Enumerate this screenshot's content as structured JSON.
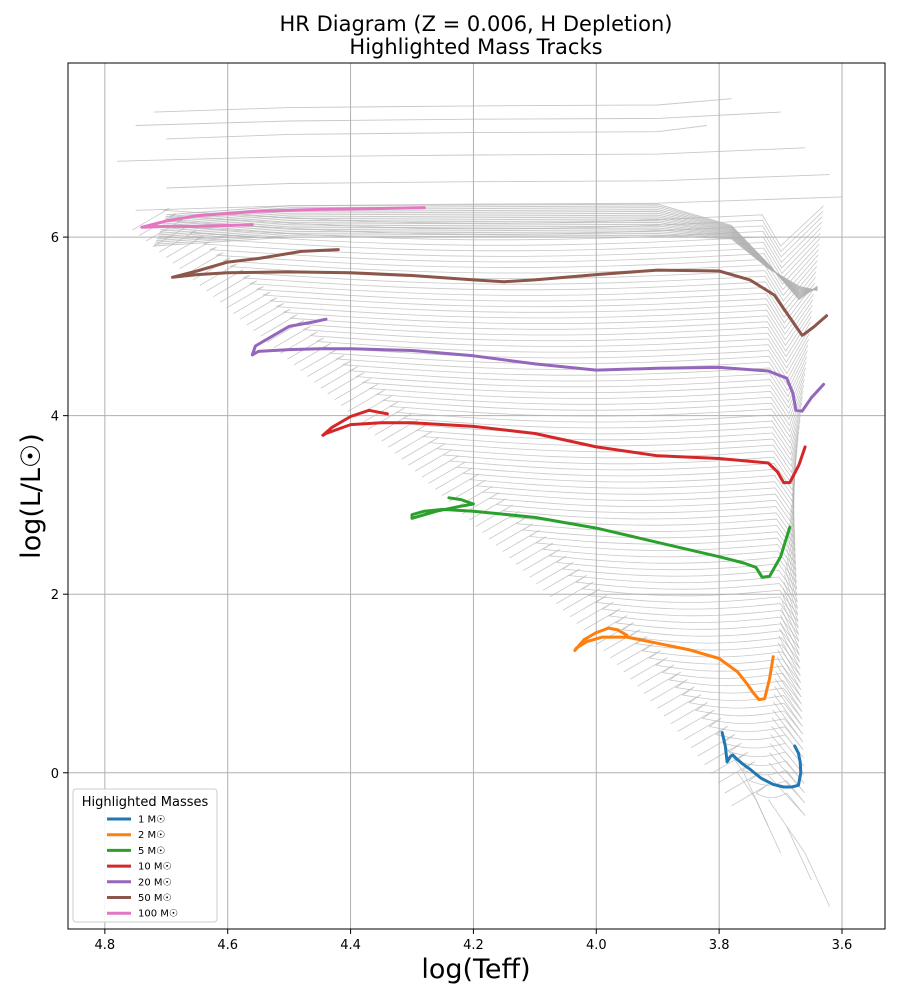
{
  "chart_data": {
    "type": "line",
    "title_line1": "HR Diagram (Z = 0.006, H Depletion)",
    "title_line2": "Highlighted Mass Tracks",
    "xlabel": "log(Teff)",
    "ylabel": "log(L/L☉)",
    "xlim": [
      4.86,
      3.53
    ],
    "ylim": [
      -1.75,
      7.95
    ],
    "x_inverted": true,
    "grid": true,
    "xticks": [
      4.8,
      4.6,
      4.4,
      4.2,
      4.0,
      3.8,
      3.6
    ],
    "yticks": [
      0,
      2,
      4,
      6
    ],
    "legend": {
      "title": "Highlighted Masses",
      "placement": "lower-left"
    },
    "background_tracks_color": "#b0b0b0",
    "series": [
      {
        "name": "1 M☉",
        "color": "#1f77b4",
        "x": [
          3.795,
          3.79,
          3.787,
          3.782,
          3.778,
          3.772,
          3.762,
          3.748,
          3.732,
          3.712,
          3.695,
          3.682,
          3.671,
          3.667,
          3.668,
          3.671,
          3.677
        ],
        "y": [
          0.45,
          0.3,
          0.12,
          0.18,
          0.2,
          0.16,
          0.1,
          0.03,
          -0.06,
          -0.13,
          -0.16,
          -0.16,
          -0.14,
          0.0,
          0.12,
          0.22,
          0.3
        ]
      },
      {
        "name": "2 M☉",
        "color": "#ff7f0e",
        "x": [
          3.95,
          3.965,
          3.98,
          4.0,
          4.02,
          4.035,
          4.032,
          4.015,
          3.99,
          3.95,
          3.9,
          3.85,
          3.8,
          3.77,
          3.755,
          3.745,
          3.735,
          3.726,
          3.718,
          3.712
        ],
        "y": [
          1.54,
          1.6,
          1.62,
          1.57,
          1.49,
          1.37,
          1.4,
          1.47,
          1.52,
          1.52,
          1.45,
          1.38,
          1.28,
          1.13,
          1.0,
          0.9,
          0.82,
          0.83,
          1.05,
          1.3
        ]
      },
      {
        "name": "5 M☉",
        "color": "#2ca02c",
        "x": [
          4.24,
          4.22,
          4.2,
          4.225,
          4.26,
          4.3,
          4.3,
          4.28,
          4.25,
          4.2,
          4.1,
          4.0,
          3.9,
          3.8,
          3.76,
          3.74,
          3.73,
          3.718,
          3.7,
          3.685
        ],
        "y": [
          3.08,
          3.06,
          3.01,
          2.98,
          2.93,
          2.85,
          2.89,
          2.93,
          2.95,
          2.93,
          2.86,
          2.74,
          2.58,
          2.42,
          2.35,
          2.3,
          2.19,
          2.2,
          2.42,
          2.75
        ]
      },
      {
        "name": "10 M☉",
        "color": "#d62728",
        "x": [
          4.34,
          4.37,
          4.4,
          4.43,
          4.445,
          4.44,
          4.4,
          4.35,
          4.3,
          4.2,
          4.1,
          4.0,
          3.9,
          3.8,
          3.72,
          3.705,
          3.695,
          3.685,
          3.67,
          3.66
        ],
        "y": [
          4.02,
          4.06,
          3.99,
          3.87,
          3.78,
          3.8,
          3.9,
          3.92,
          3.92,
          3.88,
          3.8,
          3.65,
          3.55,
          3.52,
          3.47,
          3.37,
          3.25,
          3.25,
          3.45,
          3.65
        ]
      },
      {
        "name": "20 M☉",
        "color": "#9467bd",
        "x": [
          4.44,
          4.46,
          4.5,
          4.53,
          4.555,
          4.56,
          4.55,
          4.5,
          4.45,
          4.4,
          4.3,
          4.2,
          4.1,
          4.0,
          3.9,
          3.8,
          3.72,
          3.69,
          3.68,
          3.675,
          3.665,
          3.65,
          3.63
        ],
        "y": [
          5.08,
          5.05,
          5.0,
          4.88,
          4.78,
          4.68,
          4.72,
          4.74,
          4.75,
          4.75,
          4.73,
          4.67,
          4.58,
          4.51,
          4.53,
          4.54,
          4.5,
          4.42,
          4.25,
          4.06,
          4.05,
          4.2,
          4.35
        ]
      },
      {
        "name": "50 M☉",
        "color": "#8c564b",
        "x": [
          4.42,
          4.48,
          4.55,
          4.6,
          4.65,
          4.69,
          4.65,
          4.6,
          4.5,
          4.4,
          4.3,
          4.2,
          4.15,
          4.1,
          4.0,
          3.9,
          3.8,
          3.75,
          3.71,
          3.69,
          3.675,
          3.665,
          3.66,
          3.645,
          3.625
        ],
        "y": [
          5.86,
          5.84,
          5.76,
          5.72,
          5.62,
          5.55,
          5.58,
          5.6,
          5.61,
          5.6,
          5.57,
          5.52,
          5.5,
          5.52,
          5.58,
          5.63,
          5.62,
          5.52,
          5.35,
          5.15,
          5.0,
          4.9,
          4.92,
          5.0,
          5.12
        ]
      },
      {
        "name": "100 M☉",
        "color": "#e377c2",
        "x": [
          4.28,
          4.35,
          4.45,
          4.55,
          4.65,
          4.7,
          4.74,
          4.7,
          4.65,
          4.6,
          4.56
        ],
        "y": [
          6.33,
          6.32,
          6.31,
          6.29,
          6.24,
          6.18,
          6.11,
          6.12,
          6.12,
          6.13,
          6.14
        ]
      }
    ]
  }
}
